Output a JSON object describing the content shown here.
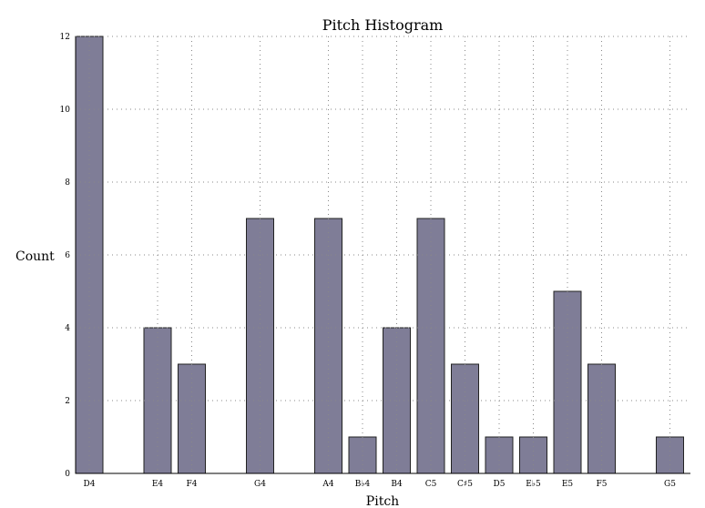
{
  "chart_data": {
    "type": "bar",
    "title": "Pitch Histogram",
    "xlabel": "Pitch",
    "ylabel": "Count",
    "ylim": [
      0,
      12
    ],
    "yticks": [
      0,
      2,
      4,
      6,
      8,
      10,
      12
    ],
    "grid": true,
    "bar_color": "#7f7d97",
    "bar_edge_color": "#222222",
    "categories": [
      "D4",
      "E4",
      "F4",
      "G4",
      "A4",
      "B♭4",
      "B4",
      "C5",
      "C♯5",
      "D5",
      "E♭5",
      "E5",
      "F5",
      "G5"
    ],
    "x": [
      62,
      64,
      65,
      67,
      69,
      70,
      71,
      72,
      73,
      74,
      75,
      76,
      77,
      79
    ],
    "values": [
      12,
      4,
      3,
      7,
      7,
      1,
      4,
      7,
      3,
      1,
      1,
      5,
      3,
      1
    ]
  }
}
